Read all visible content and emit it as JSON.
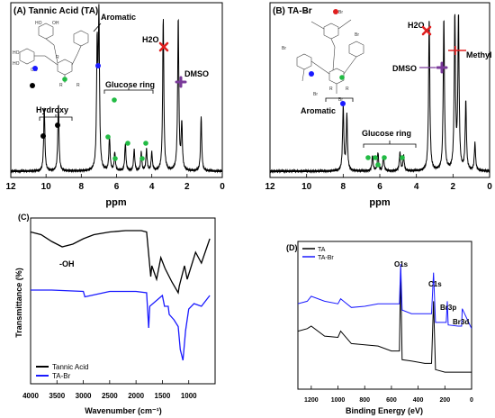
{
  "chart_data": [
    {
      "type": "line",
      "panel_label": "(A) Tannic Acid (TA)",
      "xlabel": "ppm",
      "xlim": [
        12,
        0
      ],
      "x_ticks": [
        "12",
        "10",
        "8",
        "6",
        "4",
        "2",
        "0"
      ],
      "annotations": [
        "Aromatic",
        "H2O",
        "DMSO",
        "Glucose ring",
        "Hydroxy"
      ],
      "peaks": [
        {
          "x": 10.1,
          "y": 0.42
        },
        {
          "x": 9.3,
          "y": 0.44
        },
        {
          "x": 7.1,
          "y": 0.78
        },
        {
          "x": 7.0,
          "y": 0.98
        },
        {
          "x": 6.4,
          "y": 0.22
        },
        {
          "x": 6.1,
          "y": 0.12
        },
        {
          "x": 5.5,
          "y": 0.18
        },
        {
          "x": 5.0,
          "y": 0.14
        },
        {
          "x": 4.6,
          "y": 0.12
        },
        {
          "x": 4.3,
          "y": 0.14
        },
        {
          "x": 4.0,
          "y": 0.12
        },
        {
          "x": 3.35,
          "y": 1.0
        },
        {
          "x": 2.5,
          "y": 1.0
        },
        {
          "x": 2.3,
          "y": 0.3
        },
        {
          "x": 1.2,
          "y": 0.35
        }
      ]
    },
    {
      "type": "line",
      "panel_label": "(B) TA-Br",
      "xlabel": "ppm",
      "xlim": [
        12,
        0
      ],
      "x_ticks": [
        "12",
        "10",
        "8",
        "6",
        "4",
        "2",
        "0"
      ],
      "annotations": [
        "H2O",
        "Methyl",
        "DMSO",
        "Aromatic",
        "Glucose ring"
      ],
      "peaks": [
        {
          "x": 8.0,
          "y": 0.42
        },
        {
          "x": 7.8,
          "y": 0.36
        },
        {
          "x": 6.4,
          "y": 0.1
        },
        {
          "x": 6.1,
          "y": 0.12
        },
        {
          "x": 5.8,
          "y": 0.1
        },
        {
          "x": 4.9,
          "y": 0.12
        },
        {
          "x": 4.7,
          "y": 0.1
        },
        {
          "x": 3.3,
          "y": 1.0
        },
        {
          "x": 2.5,
          "y": 1.0
        },
        {
          "x": 1.9,
          "y": 1.0
        },
        {
          "x": 1.7,
          "y": 1.0
        },
        {
          "x": 1.3,
          "y": 0.45
        },
        {
          "x": 0.8,
          "y": 0.18
        }
      ]
    },
    {
      "type": "line",
      "panel_label": "(C)",
      "xlabel": "Wavenumber (cm⁻¹)",
      "ylabel": "Transmittance (%)",
      "xlim": [
        4000,
        500
      ],
      "x_ticks": [
        "4000",
        "3500",
        "3000",
        "2500",
        "2000",
        "1500",
        "1000"
      ],
      "annotations": [
        "-OH"
      ],
      "legend_position": "bottom-left",
      "series": [
        {
          "name": "Tannic Acid",
          "color": "#000000",
          "x": [
            4000,
            3800,
            3600,
            3400,
            3200,
            3000,
            2800,
            2500,
            2200,
            1900,
            1800,
            1720,
            1700,
            1610,
            1530,
            1450,
            1320,
            1200,
            1180,
            1080,
            1030,
            870,
            760,
            600
          ],
          "y": [
            0.95,
            0.93,
            0.88,
            0.84,
            0.86,
            0.9,
            0.93,
            0.95,
            0.96,
            0.96,
            0.95,
            0.62,
            0.7,
            0.6,
            0.76,
            0.68,
            0.58,
            0.5,
            0.55,
            0.7,
            0.6,
            0.8,
            0.72,
            0.9
          ]
        },
        {
          "name": "TA-Br",
          "color": "#1a1aff",
          "x": [
            4000,
            3600,
            3000,
            2970,
            2500,
            2000,
            1800,
            1760,
            1740,
            1500,
            1460,
            1390,
            1370,
            1280,
            1200,
            1160,
            1110,
            1060,
            1000,
            900,
            760,
            600
          ],
          "y": [
            0.52,
            0.52,
            0.51,
            0.47,
            0.51,
            0.51,
            0.5,
            0.24,
            0.4,
            0.48,
            0.4,
            0.4,
            0.34,
            0.3,
            0.25,
            0.08,
            0.0,
            0.22,
            0.38,
            0.42,
            0.4,
            0.48
          ]
        }
      ]
    },
    {
      "type": "line",
      "panel_label": "(D)",
      "xlabel": "Binding Energy (eV)",
      "xlim": [
        1300,
        0
      ],
      "x_ticks": [
        "1200",
        "1000",
        "800",
        "600",
        "400",
        "200",
        "0"
      ],
      "annotations": [
        "O1s",
        "C1s",
        "Br3p",
        "Br3d"
      ],
      "legend_position": "top-left",
      "series": [
        {
          "name": "TA",
          "color": "#000000",
          "x": [
            1300,
            1230,
            1200,
            1100,
            1000,
            980,
            900,
            800,
            700,
            600,
            540,
            531,
            520,
            450,
            350,
            300,
            285,
            270,
            200,
            100,
            0
          ],
          "y": [
            0.38,
            0.4,
            0.42,
            0.34,
            0.33,
            0.38,
            0.28,
            0.27,
            0.26,
            0.22,
            0.22,
            0.88,
            0.15,
            0.14,
            0.12,
            0.12,
            0.62,
            0.07,
            0.05,
            0.05,
            0.05
          ]
        },
        {
          "name": "TA-Br",
          "color": "#1a1aff",
          "x": [
            1300,
            1230,
            1200,
            1100,
            1000,
            980,
            900,
            800,
            700,
            600,
            540,
            531,
            520,
            450,
            300,
            285,
            270,
            260,
            190,
            182,
            175,
            100,
            75,
            70,
            0
          ],
          "y": [
            0.6,
            0.62,
            0.66,
            0.62,
            0.6,
            0.64,
            0.57,
            0.58,
            0.6,
            0.6,
            0.6,
            0.92,
            0.55,
            0.52,
            0.52,
            0.85,
            0.45,
            0.45,
            0.45,
            0.62,
            0.43,
            0.42,
            0.42,
            0.56,
            0.4
          ]
        }
      ]
    }
  ]
}
